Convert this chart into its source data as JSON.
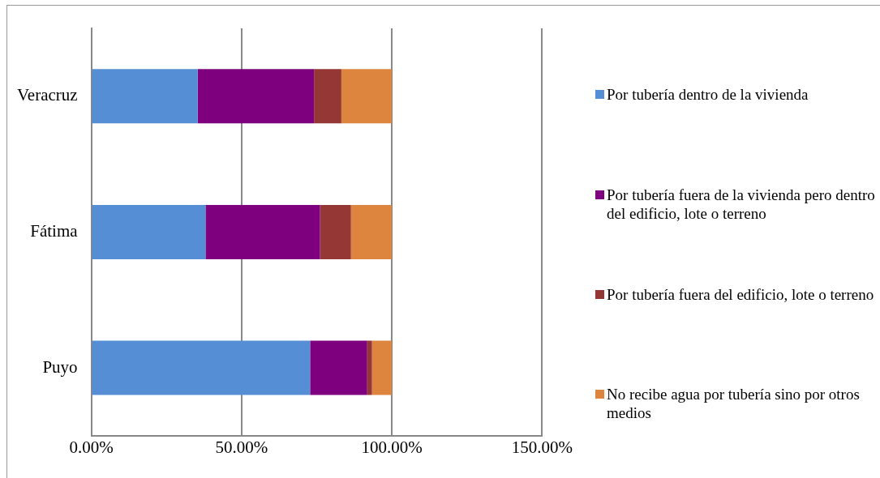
{
  "chart_data": {
    "type": "bar",
    "orientation": "horizontal",
    "stacked": true,
    "categories": [
      "Veracruz",
      "Fátima",
      "Puyo"
    ],
    "series": [
      {
        "name": "Por tubería dentro de la vivienda",
        "color": "#558ed5",
        "values": [
          35.4,
          38.0,
          72.8
        ]
      },
      {
        "name": "Por tubería fuera de la vivienda pero dentro del edificio, lote o terreno",
        "color": "#7f007f",
        "values": [
          38.7,
          38.1,
          19.0
        ]
      },
      {
        "name": "Por tubería fuera del edificio, lote o terreno",
        "color": "#953735",
        "values": [
          9.1,
          10.3,
          1.6
        ]
      },
      {
        "name": "No recibe agua por tubería sino por otros medios",
        "color": "#dd843f",
        "values": [
          16.8,
          13.6,
          6.6
        ]
      }
    ],
    "xlim": [
      0,
      150
    ],
    "xticks": [
      {
        "value": 0,
        "label": "0.00%"
      },
      {
        "value": 50,
        "label": "50.00%"
      },
      {
        "value": 100,
        "label": "100.00%"
      },
      {
        "value": 150,
        "label": "150.00%"
      }
    ],
    "grid": "x",
    "legend": "right"
  }
}
